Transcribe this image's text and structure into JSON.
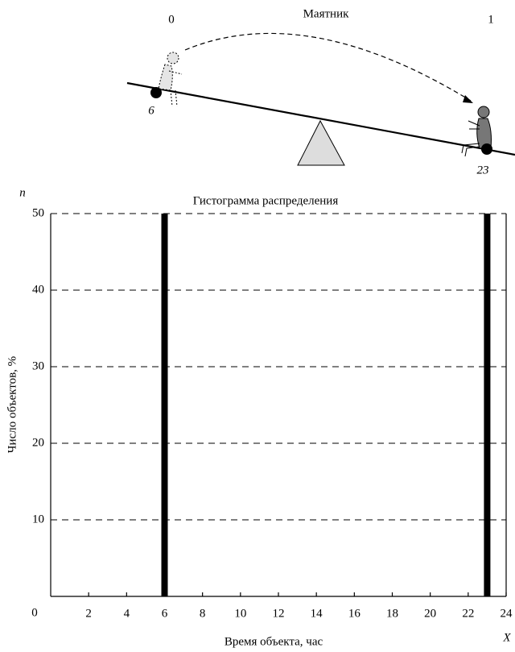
{
  "diagram": {
    "title": "Маятник",
    "left_label": "0",
    "right_label": "1",
    "left_weight": "6",
    "right_weight": "23"
  },
  "chart_data": {
    "type": "bar",
    "title": "Гистограмма распределения",
    "x_label": "Время объекта, час",
    "y_label": "Число объектов, %",
    "x_axis_symbol": "X",
    "y_axis_symbol": "n",
    "x": [
      6,
      23
    ],
    "values": [
      50,
      50
    ],
    "color": "#000000",
    "xlim": [
      0,
      24
    ],
    "xticks": [
      2,
      4,
      6,
      8,
      10,
      12,
      14,
      16,
      18,
      20,
      22,
      24
    ],
    "ylim": [
      0,
      50
    ],
    "yticks": [
      0,
      10,
      20,
      30,
      40,
      50
    ],
    "grid": true
  }
}
